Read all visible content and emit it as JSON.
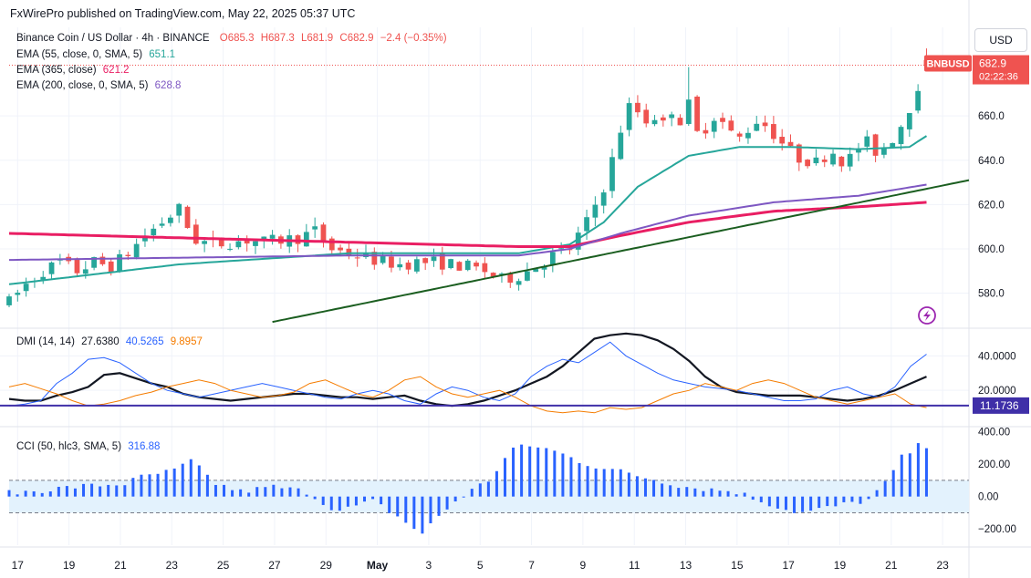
{
  "attribution": "FxWirePro published on TradingView.com, May 22, 2025 05:37 UTC",
  "currency_button": "USD",
  "symbol_line": {
    "title": "Binance Coin / US Dollar · 4h · BINANCE",
    "open": "O685.3",
    "high": "H687.3",
    "low": "L681.9",
    "close": "C682.9",
    "change": "−2.4 (−0.35%)"
  },
  "indicators": [
    {
      "label": "EMA (55, close, 0, SMA, 5)",
      "value": "651.1",
      "color": "#26a69a"
    },
    {
      "label": "EMA (365, close)",
      "value": "621.2",
      "color": "#e91e63"
    },
    {
      "label": "EMA (200, close, 0, SMA, 5)",
      "value": "628.8",
      "color": "#7e57c2"
    }
  ],
  "dmi_legend": {
    "label": "DMI (14, 14)",
    "adx": "27.6380",
    "plus_di": "40.5265",
    "minus_di": "9.8957"
  },
  "cci_legend": {
    "label": "CCI (50, hlc3, SMA, 5)",
    "value": "316.88"
  },
  "price_tag": {
    "symbol": "BNBUSD",
    "price": "682.9",
    "countdown": "02:22:36"
  },
  "dmi_level_tag": "11.1736",
  "colors": {
    "up": "#26a69a",
    "down": "#ef5350",
    "ema55": "#26a69a",
    "ema365": "#e91e63",
    "ema200": "#7e57c2",
    "trend": "#1b5e20",
    "adx": "#131722",
    "plusdi": "#2962ff",
    "minusdi": "#f57c00",
    "cci": "#2962ff",
    "cci_band": "#e3f2fd"
  },
  "chart_data": [
    {
      "type": "candlestick",
      "title": "Binance Coin / US Dollar · 4h · BINANCE",
      "ylim": [
        565,
        700
      ],
      "yticks": [
        "580.0",
        "600.0",
        "620.0",
        "640.0",
        "660.0"
      ],
      "x_labels": [
        "17",
        "19",
        "21",
        "23",
        "25",
        "27",
        "29",
        "May",
        "3",
        "5",
        "7",
        "9",
        "11",
        "13",
        "15",
        "17",
        "19",
        "21",
        "23"
      ],
      "price_anchors": [
        [
          0,
          576
        ],
        [
          2,
          584
        ],
        [
          4,
          590
        ],
        [
          6,
          594
        ],
        [
          8,
          590
        ],
        [
          10,
          594
        ],
        [
          12,
          592
        ],
        [
          14,
          598
        ],
        [
          16,
          606
        ],
        [
          18,
          612
        ],
        [
          20,
          618
        ],
        [
          21,
          610
        ],
        [
          22,
          604
        ],
        [
          24,
          602
        ],
        [
          26,
          603
        ],
        [
          28,
          604
        ],
        [
          30,
          603
        ],
        [
          32,
          604
        ],
        [
          34,
          605
        ],
        [
          36,
          608
        ],
        [
          38,
          600
        ],
        [
          40,
          598
        ],
        [
          42,
          596
        ],
        [
          44,
          594
        ],
        [
          46,
          593
        ],
        [
          48,
          594
        ],
        [
          50,
          594
        ],
        [
          52,
          593
        ],
        [
          54,
          592
        ],
        [
          56,
          590
        ],
        [
          58,
          586
        ],
        [
          60,
          588
        ],
        [
          62,
          592
        ],
        [
          64,
          597
        ],
        [
          66,
          600
        ],
        [
          67,
          606
        ],
        [
          68,
          612
        ],
        [
          69,
          620
        ],
        [
          70,
          628
        ],
        [
          71,
          640
        ],
        [
          72,
          654
        ],
        [
          73,
          664
        ],
        [
          74,
          662
        ],
        [
          75,
          658
        ],
        [
          76,
          660
        ],
        [
          77,
          656
        ],
        [
          78,
          663
        ],
        [
          79,
          658
        ],
        [
          80,
          665
        ],
        [
          81,
          652
        ],
        [
          82,
          655
        ],
        [
          83,
          660
        ],
        [
          84,
          657
        ],
        [
          85,
          652
        ],
        [
          86,
          650
        ],
        [
          87,
          654
        ],
        [
          88,
          658
        ],
        [
          89,
          656
        ],
        [
          90,
          652
        ],
        [
          91,
          648
        ],
        [
          92,
          644
        ],
        [
          93,
          641
        ],
        [
          94,
          640
        ],
        [
          95,
          639
        ],
        [
          96,
          642
        ],
        [
          97,
          644
        ],
        [
          98,
          640
        ],
        [
          99,
          641
        ],
        [
          100,
          646
        ],
        [
          101,
          648
        ],
        [
          102,
          644
        ],
        [
          103,
          646
        ],
        [
          104,
          650
        ],
        [
          105,
          656
        ],
        [
          106,
          664
        ],
        [
          107,
          674
        ],
        [
          108,
          683
        ]
      ],
      "series": [
        {
          "name": "EMA (55, close, 0, SMA, 5)",
          "anchors": [
            [
              0,
              584
            ],
            [
              20,
              593
            ],
            [
              40,
              598
            ],
            [
              60,
              598
            ],
            [
              66,
              602
            ],
            [
              70,
              612
            ],
            [
              74,
              628
            ],
            [
              80,
              642
            ],
            [
              86,
              646
            ],
            [
              92,
              646
            ],
            [
              100,
              645
            ],
            [
              106,
              646
            ],
            [
              108,
              651
            ]
          ]
        },
        {
          "name": "EMA (365, close)",
          "anchors": [
            [
              0,
              607
            ],
            [
              20,
              605
            ],
            [
              40,
              603
            ],
            [
              60,
              601
            ],
            [
              66,
              601
            ],
            [
              72,
              606
            ],
            [
              80,
              612
            ],
            [
              90,
              617
            ],
            [
              100,
              619
            ],
            [
              108,
              621
            ]
          ]
        },
        {
          "name": "EMA (200, close, 0, SMA, 5)",
          "anchors": [
            [
              0,
              595
            ],
            [
              20,
              596
            ],
            [
              40,
              597
            ],
            [
              60,
              597
            ],
            [
              66,
              600
            ],
            [
              72,
              607
            ],
            [
              80,
              615
            ],
            [
              90,
              621
            ],
            [
              100,
              624
            ],
            [
              108,
              629
            ]
          ]
        },
        {
          "name": "Trendline",
          "anchors": [
            [
              31,
              567
            ],
            [
              113,
              631
            ]
          ]
        }
      ],
      "last_close": 682.9
    },
    {
      "type": "line",
      "title": "DMI (14, 14)",
      "ylim": [
        0,
        55
      ],
      "yticks": [
        "20.0000",
        "40.0000"
      ],
      "level": 11.1736,
      "series": [
        {
          "name": "ADX",
          "values": [
            15,
            14,
            14,
            17,
            19,
            22,
            29,
            30,
            27,
            24,
            22,
            18,
            16,
            15,
            14,
            15,
            16,
            17,
            18,
            18,
            17,
            16,
            16,
            15,
            16,
            17,
            14,
            12,
            11,
            12,
            14,
            17,
            20,
            24,
            28,
            34,
            42,
            50,
            52,
            53,
            52,
            49,
            44,
            37,
            28,
            22,
            19,
            18,
            17,
            17,
            17,
            16,
            15,
            14,
            15,
            17,
            20,
            24,
            28
          ]
        },
        {
          "name": "+DI",
          "values": [
            11,
            12,
            14,
            24,
            30,
            38,
            39,
            36,
            30,
            24,
            20,
            18,
            16,
            18,
            20,
            22,
            24,
            22,
            20,
            18,
            16,
            15,
            18,
            20,
            18,
            14,
            12,
            18,
            22,
            20,
            16,
            14,
            18,
            28,
            34,
            38,
            36,
            42,
            48,
            40,
            35,
            30,
            26,
            24,
            22,
            21,
            20,
            18,
            16,
            14,
            14,
            15,
            20,
            22,
            18,
            16,
            22,
            34,
            41
          ]
        },
        {
          "name": "−DI",
          "values": [
            22,
            24,
            21,
            18,
            14,
            11,
            12,
            14,
            17,
            19,
            22,
            24,
            26,
            24,
            20,
            18,
            16,
            17,
            19,
            24,
            26,
            22,
            18,
            16,
            20,
            26,
            28,
            22,
            18,
            16,
            18,
            20,
            16,
            11,
            8,
            7,
            8,
            7,
            10,
            9,
            10,
            14,
            18,
            20,
            24,
            22,
            20,
            24,
            26,
            24,
            20,
            16,
            14,
            12,
            14,
            16,
            18,
            12,
            10
          ]
        }
      ]
    },
    {
      "type": "bar",
      "title": "CCI (50, hlc3, SMA, 5)",
      "ylim": [
        -300,
        420
      ],
      "yticks": [
        "400.00",
        "200.00",
        "0.00",
        "−200.00"
      ],
      "bands": [
        -100,
        100
      ],
      "anchors": [
        [
          0,
          20
        ],
        [
          8,
          60
        ],
        [
          14,
          80
        ],
        [
          16,
          120
        ],
        [
          20,
          160
        ],
        [
          22,
          220
        ],
        [
          25,
          80
        ],
        [
          28,
          30
        ],
        [
          32,
          60
        ],
        [
          36,
          30
        ],
        [
          38,
          -40
        ],
        [
          40,
          -90
        ],
        [
          42,
          -60
        ],
        [
          44,
          -30
        ],
        [
          46,
          -90
        ],
        [
          48,
          -160
        ],
        [
          50,
          -230
        ],
        [
          52,
          -120
        ],
        [
          54,
          -30
        ],
        [
          56,
          40
        ],
        [
          58,
          100
        ],
        [
          61,
          300
        ],
        [
          64,
          310
        ],
        [
          66,
          280
        ],
        [
          70,
          200
        ],
        [
          76,
          130
        ],
        [
          82,
          60
        ],
        [
          88,
          30
        ],
        [
          90,
          -10
        ],
        [
          94,
          -80
        ],
        [
          96,
          -100
        ],
        [
          100,
          -60
        ],
        [
          104,
          -20
        ],
        [
          106,
          80
        ],
        [
          108,
          240
        ],
        [
          110,
          310
        ],
        [
          111,
          316.88
        ]
      ]
    }
  ]
}
